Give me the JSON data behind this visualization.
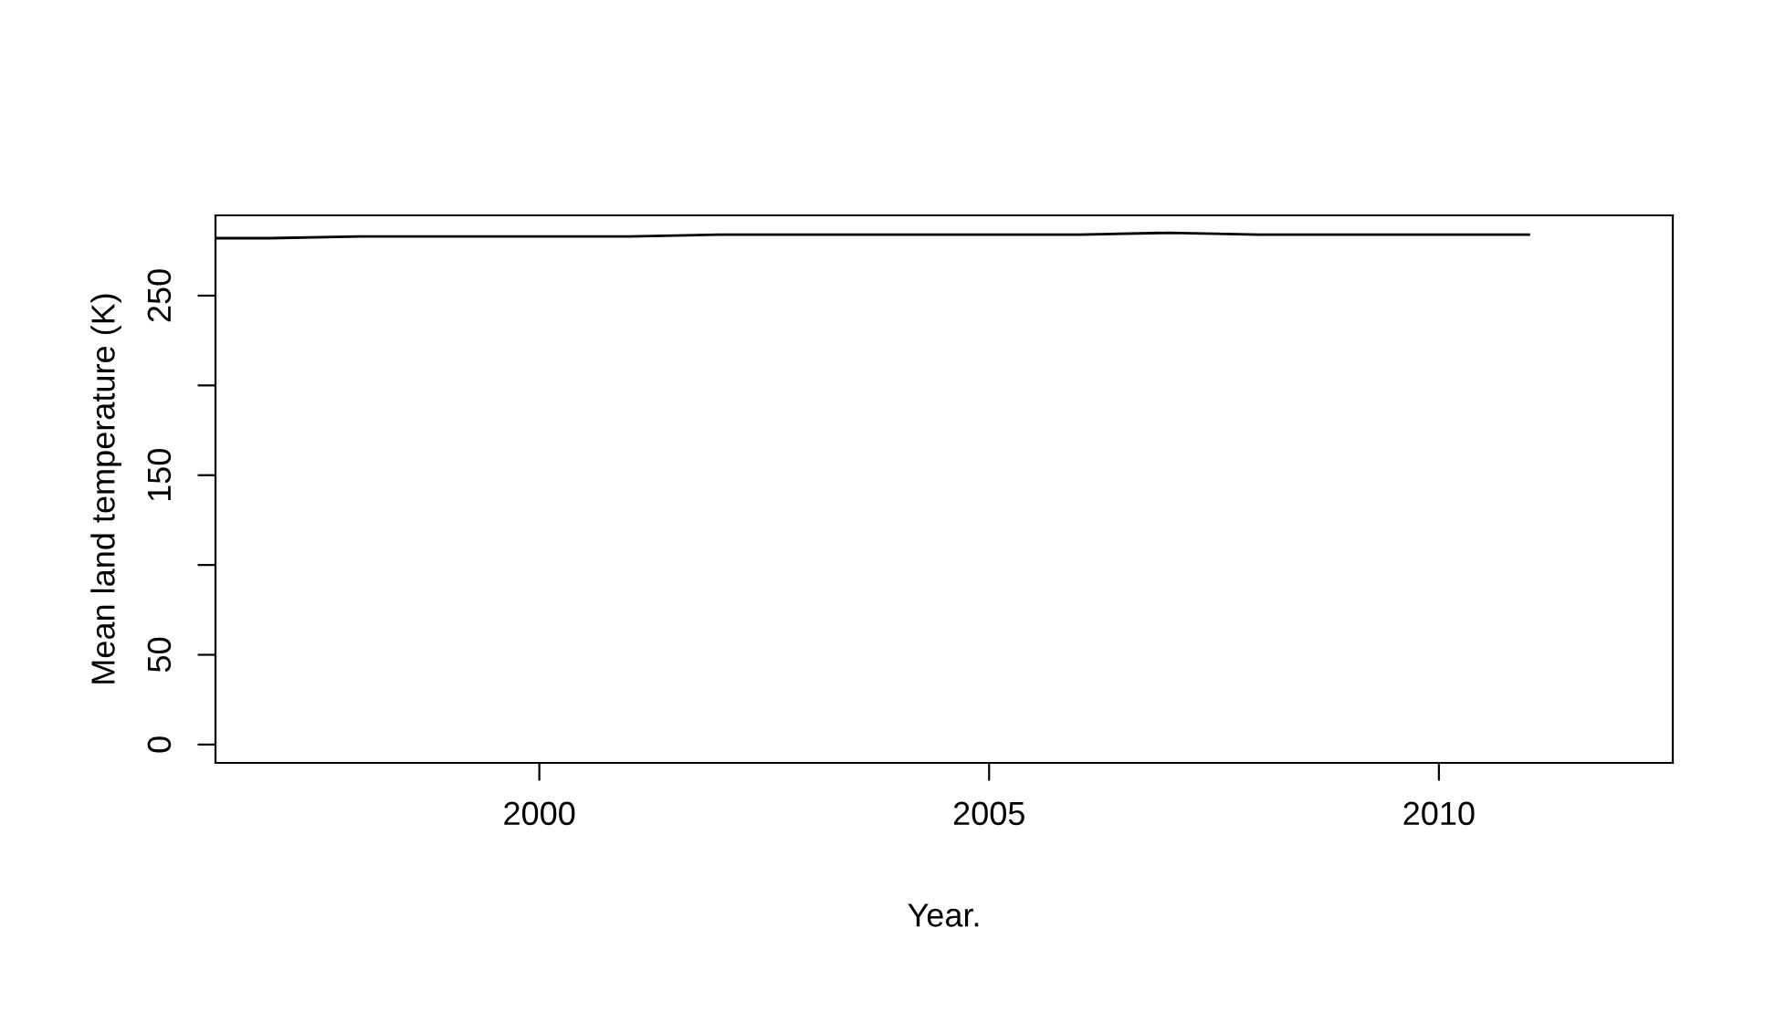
{
  "chart_data": {
    "type": "line",
    "xlabel": "Year.",
    "ylabel": "Mean land temperature (K)",
    "x": [
      1996.4,
      1997,
      1998,
      1999,
      2000,
      2001,
      2002,
      2003,
      2004,
      2005,
      2006,
      2007,
      2008,
      2009,
      2010,
      2011
    ],
    "series": [
      {
        "color": "#000000",
        "values": [
          282,
          282,
          283,
          283,
          283,
          283,
          284,
          284,
          284,
          284,
          284,
          285,
          284,
          284,
          284,
          284
        ]
      }
    ],
    "xlim": [
      1996.4,
      2012.6
    ],
    "xticks": [
      2000,
      2005,
      2010
    ],
    "ylim": [
      -10.2,
      294.7
    ],
    "yticks": [
      0,
      50,
      {
        "value": 100,
        "label": null
      },
      150,
      {
        "value": 200,
        "label": null
      },
      250
    ],
    "grid": false,
    "legend": false,
    "marker": "none",
    "line_style": "solid"
  }
}
